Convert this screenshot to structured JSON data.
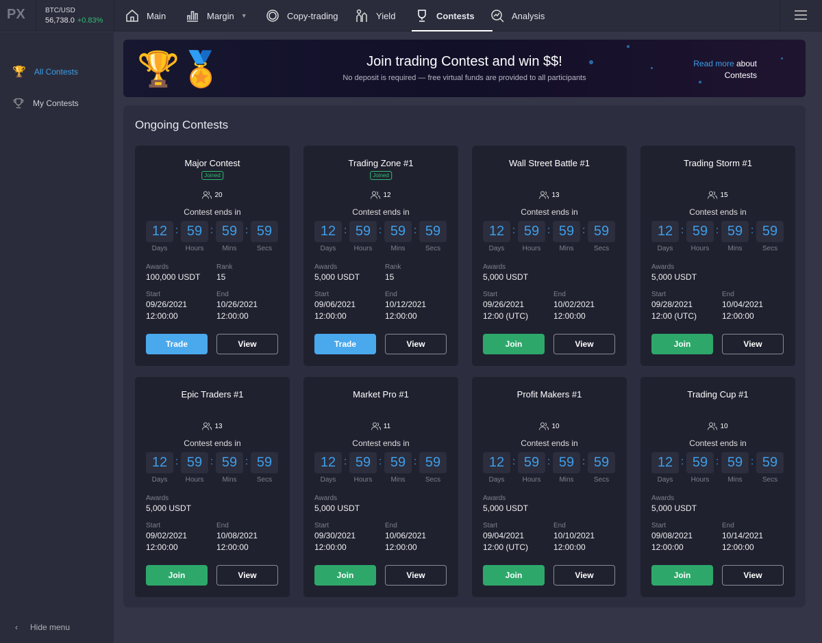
{
  "header": {
    "logo": "PX",
    "pair": "BTC/USD",
    "price": "56,738.0",
    "change": "+0.83%",
    "nav": [
      {
        "label": "Main",
        "icon": "home-icon"
      },
      {
        "label": "Margin",
        "icon": "bar-chart-icon"
      },
      {
        "label": "Copy-trading",
        "icon": "copy-trading-icon"
      },
      {
        "label": "Yield",
        "icon": "yield-icon"
      },
      {
        "label": "Contests",
        "icon": "trophy-icon",
        "active": true
      },
      {
        "label": "Analysis",
        "icon": "analysis-icon"
      }
    ]
  },
  "sidebar": {
    "items": [
      {
        "label": "All Contests",
        "active": true
      },
      {
        "label": "My Contests"
      }
    ],
    "hide": "Hide menu"
  },
  "banner": {
    "title": "Join trading Contest and win $$!",
    "subtitle": "No deposit is required — free virtual funds are provided to all participants",
    "link": "Read more",
    "link_after": "about",
    "link_line2": "Contests"
  },
  "section_title": "Ongoing Contests",
  "labels": {
    "ends": "Contest ends in",
    "days": "Days",
    "hours": "Hours",
    "mins": "Mins",
    "secs": "Secs",
    "awards": "Awards",
    "rank": "Rank",
    "start": "Start",
    "end": "End",
    "view": "View",
    "joined": "Joined"
  },
  "colors": {
    "accent": "#3d9ee8",
    "green": "#2da86a"
  },
  "contests": [
    {
      "name": "Major Contest",
      "joined": true,
      "participants": "20",
      "countdown": [
        "12",
        "59",
        "59",
        "59"
      ],
      "awards": "100,000 USDT",
      "rank": "15",
      "start_date": "09/26/2021",
      "start_time": "12:00:00",
      "end_date": "10/26/2021",
      "end_time": "12:00:00",
      "action": "Trade"
    },
    {
      "name": "Trading Zone #1",
      "joined": true,
      "participants": "12",
      "countdown": [
        "12",
        "59",
        "59",
        "59"
      ],
      "awards": "5,000 USDT",
      "rank": "15",
      "start_date": "09/06/2021",
      "start_time": "12:00:00",
      "end_date": "10/12/2021",
      "end_time": "12:00:00",
      "action": "Trade"
    },
    {
      "name": "Wall Street Battle #1",
      "participants": "13",
      "countdown": [
        "12",
        "59",
        "59",
        "59"
      ],
      "awards": "5,000 USDT",
      "start_date": "09/26/2021",
      "start_time": "12:00 (UTC)",
      "end_date": "10/02/2021",
      "end_time": "12:00:00",
      "action": "Join"
    },
    {
      "name": "Trading Storm  #1",
      "participants": "15",
      "countdown": [
        "12",
        "59",
        "59",
        "59"
      ],
      "awards": "5,000 USDT",
      "start_date": "09/28/2021",
      "start_time": "12:00 (UTC)",
      "end_date": "10/04/2021",
      "end_time": "12:00:00",
      "action": "Join"
    },
    {
      "name": "Epic Traders #1",
      "participants": "13",
      "countdown": [
        "12",
        "59",
        "59",
        "59"
      ],
      "awards": "5,000 USDT",
      "start_date": "09/02/2021",
      "start_time": "12:00:00",
      "end_date": "10/08/2021",
      "end_time": "12:00:00",
      "action": "Join"
    },
    {
      "name": "Market Pro #1",
      "participants": "11",
      "countdown": [
        "12",
        "59",
        "59",
        "59"
      ],
      "awards": "5,000 USDT",
      "start_date": "09/30/2021",
      "start_time": "12:00:00",
      "end_date": "10/06/2021",
      "end_time": "12:00:00",
      "action": "Join"
    },
    {
      "name": "Profit Makers #1",
      "participants": "10",
      "countdown": [
        "12",
        "59",
        "59",
        "59"
      ],
      "awards": "5,000 USDT",
      "start_date": "09/04/2021",
      "start_time": "12:00 (UTC)",
      "end_date": "10/10/2021",
      "end_time": "12:00:00",
      "action": "Join"
    },
    {
      "name": "Trading Cup #1",
      "participants": "10",
      "countdown": [
        "12",
        "59",
        "59",
        "59"
      ],
      "awards": "5,000 USDT",
      "start_date": "09/08/2021",
      "start_time": "12:00:00",
      "end_date": "10/14/2021",
      "end_time": "12:00:00",
      "action": "Join"
    }
  ]
}
